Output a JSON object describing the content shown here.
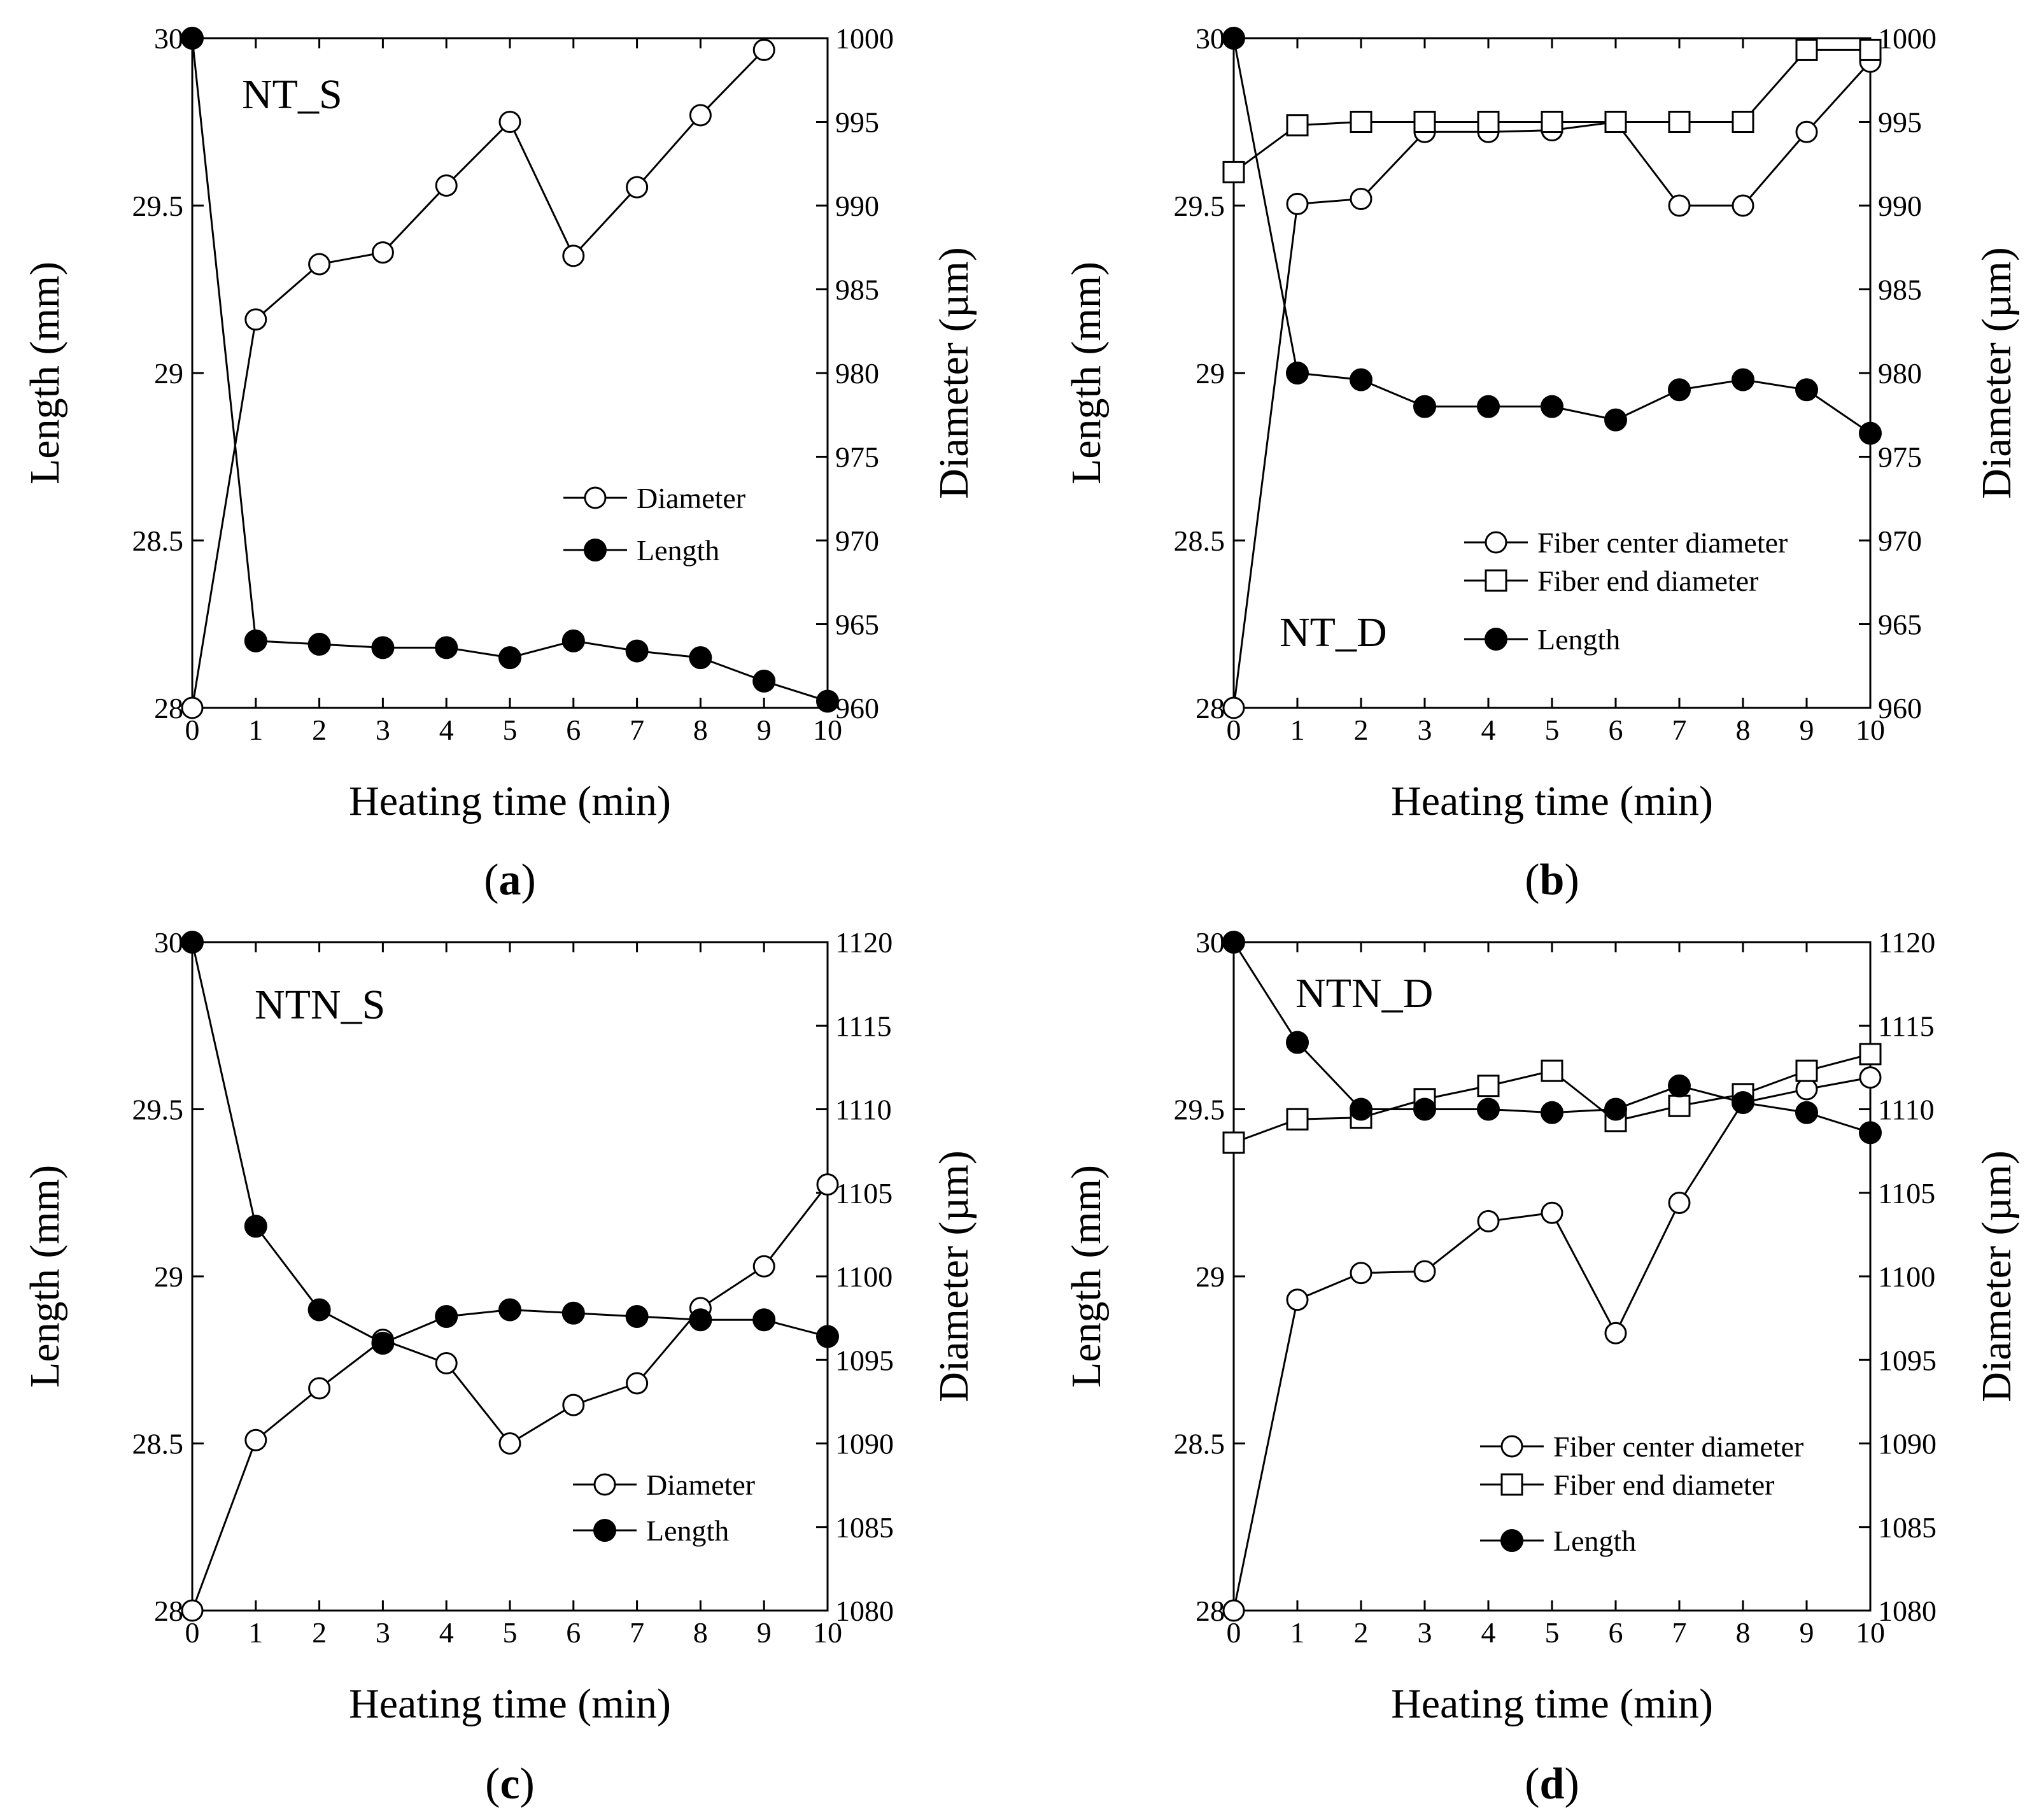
{
  "chart_data": [
    {
      "type": "line",
      "panel_label": "a",
      "annotation": "NT_S",
      "xlabel": "Heating time (min)",
      "ylabel_left": "Length (mm)",
      "ylabel_right": "Diameter (µm)",
      "x": [
        0,
        1,
        2,
        3,
        4,
        5,
        6,
        7,
        8,
        9,
        10
      ],
      "x_ticks": [
        "0",
        "1",
        "2",
        "3",
        "4",
        "5",
        "6",
        "7",
        "8",
        "9",
        "10"
      ],
      "xlim": [
        0,
        10
      ],
      "ylim_left": [
        28,
        30
      ],
      "y_ticks_left": [
        "28",
        "28.5",
        "29",
        "29.5",
        "30"
      ],
      "ylim_right": [
        960,
        1000
      ],
      "y_ticks_right": [
        "960",
        "965",
        "970",
        "975",
        "980",
        "985",
        "990",
        "995",
        "1000"
      ],
      "legend_position": "center-right",
      "series": [
        {
          "name": "Diameter",
          "marker": "open-circle",
          "axis": "right",
          "values": [
            960,
            983.2,
            986.5,
            987.2,
            991.2,
            995,
            987,
            991.1,
            995.4,
            999.3,
            null
          ]
        },
        {
          "name": "Length",
          "marker": "filled-circle",
          "axis": "left",
          "values": [
            30,
            28.2,
            28.19,
            28.18,
            28.18,
            28.15,
            28.2,
            28.17,
            28.15,
            28.08,
            28.02
          ]
        }
      ]
    },
    {
      "type": "line",
      "panel_label": "b",
      "annotation": "NT_D",
      "xlabel": "Heating time (min)",
      "ylabel_left": "Length (mm)",
      "ylabel_right": "Diameter (µm)",
      "x": [
        0,
        1,
        2,
        3,
        4,
        5,
        6,
        7,
        8,
        9,
        10
      ],
      "x_ticks": [
        "0",
        "1",
        "2",
        "3",
        "4",
        "5",
        "6",
        "7",
        "8",
        "9",
        "10"
      ],
      "xlim": [
        0,
        10
      ],
      "ylim_left": [
        28,
        30
      ],
      "y_ticks_left": [
        "28",
        "28.5",
        "29",
        "29.5",
        "30"
      ],
      "ylim_right": [
        960,
        1000
      ],
      "y_ticks_right": [
        "960",
        "965",
        "970",
        "975",
        "980",
        "985",
        "990",
        "995",
        "1000"
      ],
      "legend_position": "bottom-right",
      "series": [
        {
          "name": "Fiber center diameter",
          "marker": "open-circle",
          "axis": "right",
          "values": [
            960,
            990.1,
            990.4,
            994.4,
            994.4,
            994.5,
            995,
            990,
            990,
            994.4,
            998.6
          ]
        },
        {
          "name": "Fiber end diameter",
          "marker": "open-square",
          "axis": "right",
          "values": [
            992,
            994.8,
            995,
            995,
            995,
            995,
            995,
            995,
            995,
            999.3,
            999.3
          ]
        },
        {
          "name": "Length",
          "marker": "filled-circle",
          "axis": "left",
          "values": [
            30,
            29,
            28.98,
            28.9,
            28.9,
            28.9,
            28.86,
            28.95,
            28.98,
            28.95,
            28.82
          ]
        }
      ]
    },
    {
      "type": "line",
      "panel_label": "c",
      "annotation": "NTN_S",
      "xlabel": "Heating time (min)",
      "ylabel_left": "Length (mm)",
      "ylabel_right": "Diameter (µm)",
      "x": [
        0,
        1,
        2,
        3,
        4,
        5,
        6,
        7,
        8,
        9,
        10
      ],
      "x_ticks": [
        "0",
        "1",
        "2",
        "3",
        "4",
        "5",
        "6",
        "7",
        "8",
        "9",
        "10"
      ],
      "xlim": [
        0,
        10
      ],
      "ylim_left": [
        28,
        30
      ],
      "y_ticks_left": [
        "28",
        "28.5",
        "29",
        "29.5",
        "30"
      ],
      "ylim_right": [
        1080,
        1120
      ],
      "y_ticks_right": [
        "1080",
        "1085",
        "1090",
        "1095",
        "1100",
        "1105",
        "1110",
        "1115",
        "1120"
      ],
      "legend_position": "bottom-right",
      "series": [
        {
          "name": "Diameter",
          "marker": "open-circle",
          "axis": "right",
          "values": [
            1080,
            1090.2,
            1093.3,
            1096.2,
            1094.8,
            1090,
            1092.3,
            1093.6,
            1098.1,
            1100.6,
            1105.5
          ]
        },
        {
          "name": "Length",
          "marker": "filled-circle",
          "axis": "left",
          "values": [
            30,
            29.15,
            28.9,
            28.8,
            28.88,
            28.9,
            28.89,
            28.88,
            28.87,
            28.87,
            28.82
          ]
        }
      ]
    },
    {
      "type": "line",
      "panel_label": "d",
      "annotation": "NTN_D",
      "xlabel": "Heating time (min)",
      "ylabel_left": "Length (mm)",
      "ylabel_right": "Diameter (µm)",
      "x": [
        0,
        1,
        2,
        3,
        4,
        5,
        6,
        7,
        8,
        9,
        10
      ],
      "x_ticks": [
        "0",
        "1",
        "2",
        "3",
        "4",
        "5",
        "6",
        "7",
        "8",
        "9",
        "10"
      ],
      "xlim": [
        0,
        10
      ],
      "ylim_left": [
        28,
        30
      ],
      "y_ticks_left": [
        "28",
        "28.5",
        "29",
        "29.5",
        "30"
      ],
      "ylim_right": [
        1080,
        1120
      ],
      "y_ticks_right": [
        "1080",
        "1085",
        "1090",
        "1095",
        "1100",
        "1105",
        "1110",
        "1115",
        "1120"
      ],
      "legend_position": "bottom-right",
      "series": [
        {
          "name": "Fiber center diameter",
          "marker": "open-circle",
          "axis": "right",
          "values": [
            1080,
            1098.6,
            1100.2,
            1100.3,
            1103.3,
            1103.8,
            1096.6,
            1104.4,
            1110.4,
            1111.2,
            1111.9
          ]
        },
        {
          "name": "Fiber end diameter",
          "marker": "open-square",
          "axis": "right",
          "values": [
            1108,
            1109.4,
            1109.5,
            1110.6,
            1111.4,
            1112.3,
            1109.3,
            1110.2,
            1110.9,
            1112.3,
            1113.3
          ]
        },
        {
          "name": "Length",
          "marker": "filled-circle",
          "axis": "left",
          "values": [
            30,
            29.7,
            29.5,
            29.5,
            29.5,
            29.49,
            29.5,
            29.57,
            29.52,
            29.49,
            29.43
          ]
        }
      ]
    }
  ]
}
